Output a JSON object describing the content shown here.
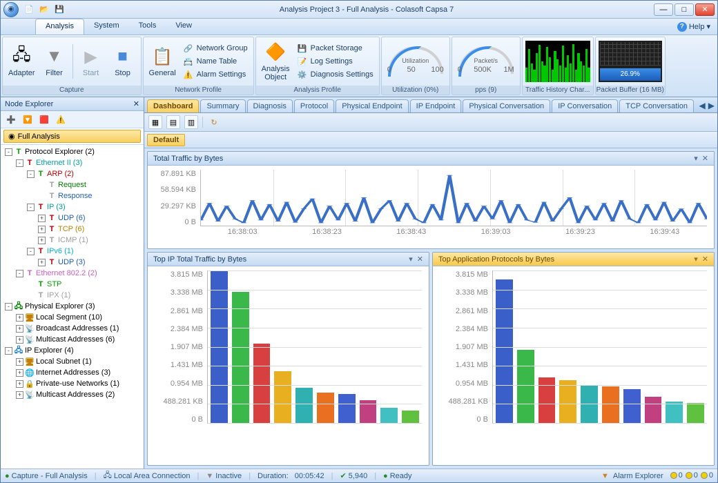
{
  "title": "Analysis Project 3 - Full Analysis - Colasoft Capsa 7",
  "qat": {
    "new_icon": "📄",
    "open_icon": "📂",
    "save_icon": "💾"
  },
  "menubar": {
    "tabs": [
      "Analysis",
      "System",
      "Tools",
      "View"
    ],
    "active": 0,
    "help": "Help"
  },
  "ribbon": {
    "capture": {
      "label": "Capture",
      "adapter": "Adapter",
      "filter": "Filter",
      "start": "Start",
      "stop": "Stop"
    },
    "netprofile": {
      "label": "Network Profile",
      "general": "General",
      "items": [
        "Network Group",
        "Name Table",
        "Alarm Settings"
      ]
    },
    "aprofile": {
      "label": "Analysis Profile",
      "object": "Analysis\nObject",
      "items": [
        "Packet Storage",
        "Log Settings",
        "Diagnosis Settings"
      ]
    },
    "util": {
      "label": "Utilization (0%)",
      "gauge_label": "Utilization",
      "scale": [
        "0",
        "50",
        "100"
      ]
    },
    "pps": {
      "label": "pps (9)",
      "gauge_label": "Packet/s",
      "scale": [
        "0",
        "500K",
        "1M"
      ]
    },
    "history": {
      "label": "Traffic History Char...",
      "bars": [
        35,
        80,
        45,
        30,
        70,
        90,
        50,
        40,
        85,
        60,
        30,
        75,
        55,
        40,
        88,
        35,
        65,
        45,
        92,
        30,
        70,
        50,
        40,
        80,
        35
      ]
    },
    "buffer": {
      "label": "Packet Buffer (16 MB)",
      "pct": "26.9%",
      "pct_width": 27
    }
  },
  "sidebar": {
    "title": "Node Explorer",
    "tools": [
      "➕",
      "🔽",
      "🟥",
      "⚠️"
    ],
    "selector": "Full Analysis",
    "tree": [
      {
        "depth": 0,
        "toggle": "-",
        "icon": "T",
        "iconColor": "#00a000",
        "label": "Protocol Explorer (2)",
        "color": "#000"
      },
      {
        "depth": 1,
        "toggle": "-",
        "icon": "T",
        "iconColor": "#c00000",
        "label": "Ethernet II (3)",
        "color": "#00a0a0"
      },
      {
        "depth": 2,
        "toggle": "-",
        "icon": "T",
        "iconColor": "#00a000",
        "label": "ARP (2)",
        "color": "#c00000"
      },
      {
        "depth": 3,
        "toggle": "",
        "icon": "T",
        "iconColor": "#a0a0a0",
        "label": "Request",
        "color": "#008000"
      },
      {
        "depth": 3,
        "toggle": "",
        "icon": "T",
        "iconColor": "#a0a0a0",
        "label": "Response",
        "color": "#2060c0"
      },
      {
        "depth": 2,
        "toggle": "-",
        "icon": "T",
        "iconColor": "#c00000",
        "label": "IP (3)",
        "color": "#00a0a0"
      },
      {
        "depth": 3,
        "toggle": "+",
        "icon": "T",
        "iconColor": "#c00000",
        "label": "UDP (6)",
        "color": "#2060c0"
      },
      {
        "depth": 3,
        "toggle": "+",
        "icon": "T",
        "iconColor": "#c00000",
        "label": "TCP (6)",
        "color": "#c08000"
      },
      {
        "depth": 3,
        "toggle": "+",
        "icon": "T",
        "iconColor": "#a0a0a0",
        "label": "ICMP (1)",
        "color": "#a0a0a0"
      },
      {
        "depth": 2,
        "toggle": "-",
        "icon": "T",
        "iconColor": "#c00000",
        "label": "IPv6 (1)",
        "color": "#00b0d0"
      },
      {
        "depth": 3,
        "toggle": "+",
        "icon": "T",
        "iconColor": "#c00000",
        "label": "UDP (3)",
        "color": "#2060c0"
      },
      {
        "depth": 1,
        "toggle": "-",
        "icon": "T",
        "iconColor": "#d060c0",
        "label": "Ethernet 802.2 (2)",
        "color": "#d060c0"
      },
      {
        "depth": 2,
        "toggle": "",
        "icon": "T",
        "iconColor": "#00a000",
        "label": "STP",
        "color": "#00a000"
      },
      {
        "depth": 2,
        "toggle": "",
        "icon": "T",
        "iconColor": "#a0a0a0",
        "label": "IPX (1)",
        "color": "#a0a0a0"
      },
      {
        "depth": 0,
        "toggle": "-",
        "icon": "🖧",
        "iconColor": "#008000",
        "label": "Physical Explorer (3)",
        "color": "#000"
      },
      {
        "depth": 1,
        "toggle": "+",
        "icon": "🖥",
        "iconColor": "#c08000",
        "label": "Local Segment (10)",
        "color": "#000"
      },
      {
        "depth": 1,
        "toggle": "+",
        "icon": "📡",
        "iconColor": "#808080",
        "label": "Broadcast Addresses (1)",
        "color": "#000"
      },
      {
        "depth": 1,
        "toggle": "+",
        "icon": "📡",
        "iconColor": "#808080",
        "label": "Multicast Addresses (6)",
        "color": "#000"
      },
      {
        "depth": 0,
        "toggle": "-",
        "icon": "🖧",
        "iconColor": "#2080d0",
        "label": "IP Explorer (4)",
        "color": "#000"
      },
      {
        "depth": 1,
        "toggle": "+",
        "icon": "🖥",
        "iconColor": "#c08000",
        "label": "Local Subnet (1)",
        "color": "#000"
      },
      {
        "depth": 1,
        "toggle": "+",
        "icon": "🌐",
        "iconColor": "#2080d0",
        "label": "Internet Addresses (3)",
        "color": "#000"
      },
      {
        "depth": 1,
        "toggle": "+",
        "icon": "🔒",
        "iconColor": "#808080",
        "label": "Private-use Networks (1)",
        "color": "#000"
      },
      {
        "depth": 1,
        "toggle": "+",
        "icon": "📡",
        "iconColor": "#808080",
        "label": "Multicast Addresses (2)",
        "color": "#000"
      }
    ]
  },
  "tabs": {
    "list": [
      "Dashboard",
      "Summary",
      "Diagnosis",
      "Protocol",
      "Physical Endpoint",
      "IP Endpoint",
      "Physical Conversation",
      "IP Conversation",
      "TCP Conversation"
    ],
    "active": 0
  },
  "dashboard": {
    "default": "Default",
    "panel1": {
      "title": "Total Traffic by Bytes",
      "ylabels": [
        "87.891 KB",
        "58.594 KB",
        "29.297 KB",
        "0  B"
      ],
      "xlabels": [
        "16:38:03",
        "16:38:23",
        "16:38:43",
        "16:39:03",
        "16:39:23",
        "16:39:43"
      ],
      "line_color": "#3a6fc8",
      "grid_color": "#dddddd",
      "points": [
        10,
        40,
        8,
        35,
        12,
        5,
        45,
        10,
        38,
        8,
        42,
        6,
        30,
        48,
        5,
        35,
        10,
        40,
        8,
        50,
        5,
        30,
        45,
        8,
        40,
        12,
        5,
        38,
        10,
        90,
        5,
        40,
        8,
        35,
        12,
        45,
        5,
        38,
        10,
        6,
        42,
        8,
        30,
        50,
        5,
        35,
        10,
        40,
        8,
        45,
        12,
        5,
        38,
        10,
        42,
        8,
        30,
        5,
        40,
        12
      ]
    },
    "panel2": {
      "title": "Top IP Total Traffic by Bytes",
      "ylabels": [
        "3.815 MB",
        "3.338 MB",
        "2.861 MB",
        "2.384 MB",
        "1.907 MB",
        "1.431 MB",
        "0.954 MB",
        "488.281 KB",
        "0  B"
      ],
      "bars": [
        {
          "v": 100,
          "c": "#3a5fc8"
        },
        {
          "v": 86,
          "c": "#3ab84a"
        },
        {
          "v": 52,
          "c": "#d84040"
        },
        {
          "v": 34,
          "c": "#e8b020"
        },
        {
          "v": 23,
          "c": "#30b0b0"
        },
        {
          "v": 20,
          "c": "#e87020"
        },
        {
          "v": 19,
          "c": "#4060d0"
        },
        {
          "v": 15,
          "c": "#c04080"
        },
        {
          "v": 10,
          "c": "#40c0c0"
        },
        {
          "v": 8,
          "c": "#60c040"
        }
      ]
    },
    "panel3": {
      "title": "Top Application Protocols by Bytes",
      "ylabels": [
        "3.815 MB",
        "3.338 MB",
        "2.861 MB",
        "2.384 MB",
        "1.907 MB",
        "1.431 MB",
        "0.954 MB",
        "488.281 KB",
        "0  B"
      ],
      "bars": [
        {
          "v": 94,
          "c": "#3a5fc8"
        },
        {
          "v": 48,
          "c": "#3ab84a"
        },
        {
          "v": 30,
          "c": "#d84040"
        },
        {
          "v": 28,
          "c": "#e8b020"
        },
        {
          "v": 25,
          "c": "#30b0b0"
        },
        {
          "v": 24,
          "c": "#e87020"
        },
        {
          "v": 22,
          "c": "#4060d0"
        },
        {
          "v": 17,
          "c": "#c04080"
        },
        {
          "v": 14,
          "c": "#40c0c0"
        },
        {
          "v": 13,
          "c": "#60c040"
        }
      ]
    }
  },
  "status": {
    "capture": "Capture - Full Analysis",
    "nic": "Local Area Connection",
    "inactive": "Inactive",
    "duration_label": "Duration:",
    "duration": "00:05:42",
    "pkts": "5,940",
    "ready": "Ready",
    "alarm": "Alarm Explorer",
    "counts": [
      "0",
      "0",
      "0"
    ],
    "dot_colors": [
      "#f0d000",
      "#f0d000",
      "#f0d000"
    ]
  }
}
